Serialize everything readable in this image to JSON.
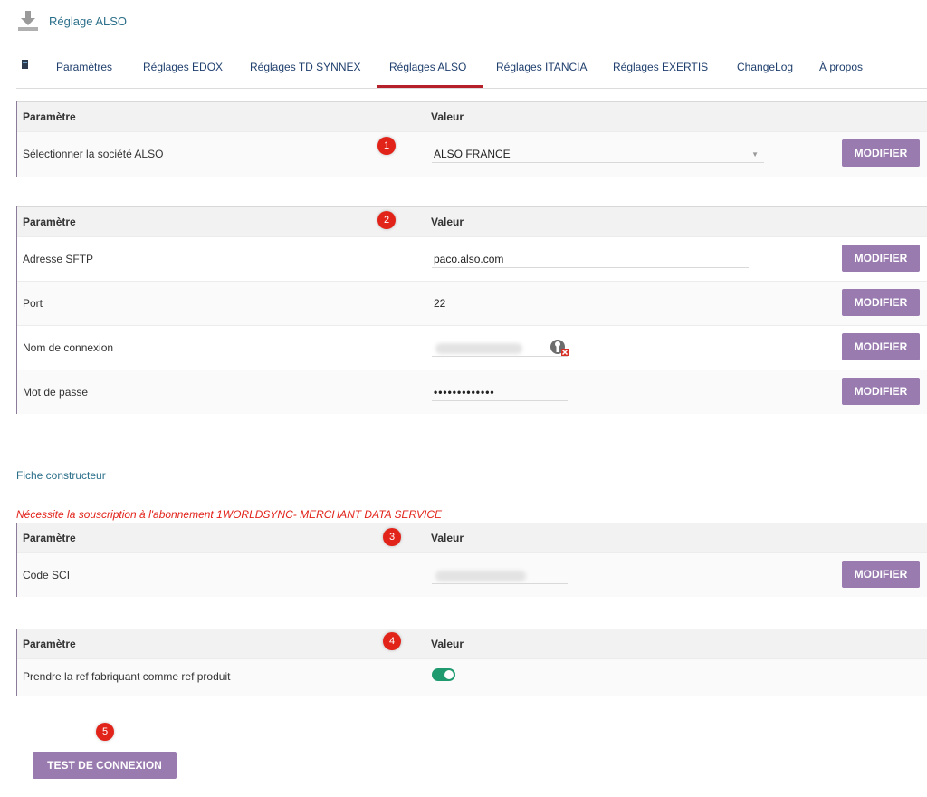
{
  "header": {
    "title": "Réglage ALSO",
    "icon": "download-icon"
  },
  "tabs": [
    {
      "label": "Paramètres"
    },
    {
      "label": "Réglages EDOX"
    },
    {
      "label": "Réglages TD SYNNEX"
    },
    {
      "label": "Réglages ALSO",
      "active": true
    },
    {
      "label": "Réglages ITANCIA"
    },
    {
      "label": "Réglages EXERTIS"
    },
    {
      "label": "ChangeLog"
    },
    {
      "label": "À propos"
    }
  ],
  "colors": {
    "accent": "#9a7bb0",
    "tab_active": "#b6202a",
    "badge": "#e2231a",
    "link": "#2b6f8a",
    "toggle_on": "#1f9a6e"
  },
  "table_headers": {
    "param": "Paramètre",
    "value": "Valeur"
  },
  "modify_label": "MODIFIER",
  "section1": {
    "badge": "1",
    "row": {
      "label": "Sélectionner la société ALSO",
      "value": "ALSO FRANCE"
    }
  },
  "section2": {
    "badge": "2",
    "rows": [
      {
        "label": "Adresse SFTP",
        "value": "paco.also.com"
      },
      {
        "label": "Port",
        "value": "22"
      },
      {
        "label": "Nom de connexion",
        "value": ""
      },
      {
        "label": "Mot de passe",
        "value": "•••••••••••••"
      }
    ]
  },
  "fiche": {
    "title": "Fiche constructeur",
    "warning": "Nécessite la souscription à l'abonnement 1WORLDSYNC- MERCHANT DATA SERVICE"
  },
  "section3": {
    "badge": "3",
    "row": {
      "label": "Code SCI",
      "value": ""
    }
  },
  "section4": {
    "badge": "4",
    "row": {
      "label": "Prendre la ref fabriquant comme ref produit",
      "toggle_on": true
    }
  },
  "test": {
    "badge": "5",
    "label": "TEST DE CONNEXION"
  }
}
